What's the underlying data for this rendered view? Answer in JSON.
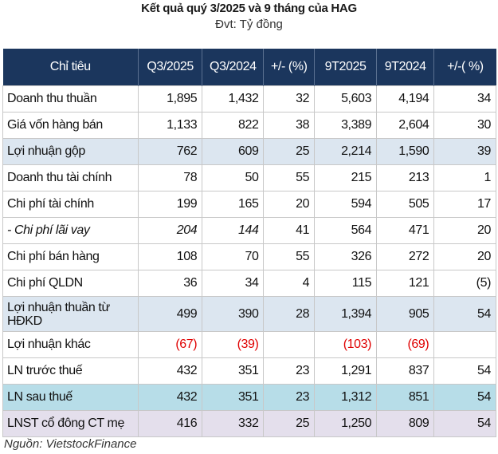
{
  "title": "Kết quả quý 3/2025 và 9 tháng của HAG",
  "unit": "Đvt: Tỷ đồng",
  "headers": [
    "Chỉ tiêu",
    "Q3/2025",
    "Q3/2024",
    "+/- (%)",
    "9T2025",
    "9T2024",
    "+/-( %)"
  ],
  "rows": [
    {
      "cells": [
        "Doanh thu thuần",
        "1,895",
        "1,432",
        "32",
        "5,603",
        "4,194",
        "34"
      ]
    },
    {
      "cells": [
        "Giá vốn hàng bán",
        "1,133",
        "822",
        "38",
        "3,389",
        "2,604",
        "30"
      ]
    },
    {
      "cells": [
        "Lợi nhuận gộp",
        "762",
        "609",
        "25",
        "2,214",
        "1,590",
        "39"
      ],
      "style": "shade"
    },
    {
      "cells": [
        "Doanh thu tài chính",
        "78",
        "50",
        "55",
        "215",
        "213",
        "1"
      ]
    },
    {
      "cells": [
        "Chi phí tài chính",
        "199",
        "165",
        "20",
        "594",
        "505",
        "17"
      ]
    },
    {
      "cells": [
        "- Chi phí lãi vay",
        "204",
        "144",
        "41",
        "564",
        "471",
        "20"
      ],
      "style": "ital"
    },
    {
      "cells": [
        "Chi phí bán hàng",
        "108",
        "70",
        "55",
        "326",
        "272",
        "20"
      ]
    },
    {
      "cells": [
        "Chi phí QLDN",
        "36",
        "34",
        "4",
        "115",
        "121",
        "(5)"
      ]
    },
    {
      "cells": [
        "Lợi nhuận thuần từ HĐKD",
        "499",
        "390",
        "28",
        "1,394",
        "905",
        "54"
      ],
      "style": "shade tall"
    },
    {
      "cells": [
        "Lợi nhuận khác",
        "(67)",
        "(39)",
        "",
        "(103)",
        "(69)",
        ""
      ]
    },
    {
      "cells": [
        "LN trước thuế",
        "432",
        "351",
        "23",
        "1,291",
        "837",
        "54"
      ]
    },
    {
      "cells": [
        "LN sau thuế",
        "432",
        "351",
        "23",
        "1,312",
        "851",
        "54"
      ],
      "style": "cyan"
    },
    {
      "cells": [
        "LNST cổ đông CT mẹ",
        "416",
        "332",
        "25",
        "1,250",
        "809",
        "54"
      ],
      "style": "purple"
    }
  ],
  "source": "Nguồn: VietstockFinance",
  "colors": {
    "header": "#1b365d",
    "shade": "#dce6f0",
    "highlight": "#b7dde8",
    "parent": "#e4dfec",
    "negative": "#e00000"
  }
}
